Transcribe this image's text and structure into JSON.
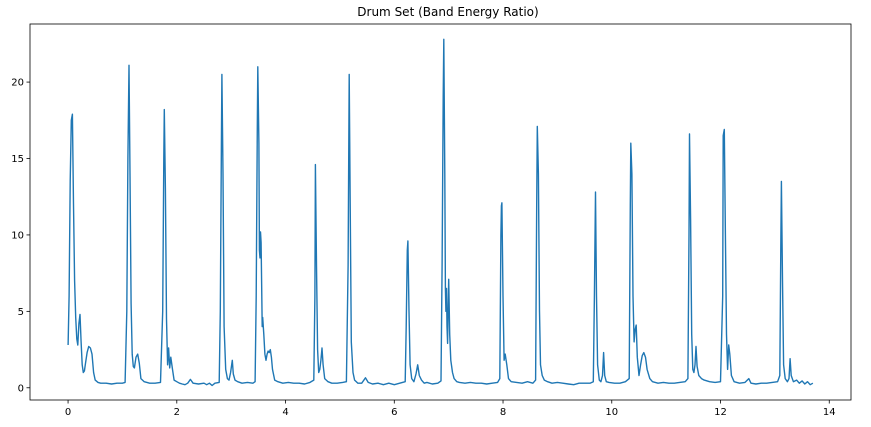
{
  "chart_data": {
    "type": "line",
    "title": "Drum Set (Band Energy Ratio)",
    "xlabel": "",
    "ylabel": "",
    "xlim": [
      -0.7,
      14.4
    ],
    "ylim": [
      -0.8,
      23.8
    ],
    "xticks": [
      0,
      2,
      4,
      6,
      8,
      10,
      12,
      14
    ],
    "yticks": [
      0,
      5,
      10,
      15,
      20
    ],
    "grid": false,
    "legend": "none",
    "series": [
      {
        "color": "#1f77b4",
        "points": [
          [
            0.0,
            2.8
          ],
          [
            0.02,
            6.0
          ],
          [
            0.04,
            13.5
          ],
          [
            0.06,
            17.5
          ],
          [
            0.08,
            17.9
          ],
          [
            0.1,
            12.0
          ],
          [
            0.12,
            7.0
          ],
          [
            0.14,
            4.6
          ],
          [
            0.16,
            3.2
          ],
          [
            0.18,
            2.8
          ],
          [
            0.2,
            4.2
          ],
          [
            0.22,
            4.8
          ],
          [
            0.24,
            3.0
          ],
          [
            0.26,
            1.5
          ],
          [
            0.28,
            1.0
          ],
          [
            0.3,
            1.1
          ],
          [
            0.32,
            1.6
          ],
          [
            0.35,
            2.3
          ],
          [
            0.38,
            2.7
          ],
          [
            0.41,
            2.6
          ],
          [
            0.44,
            2.2
          ],
          [
            0.47,
            1.0
          ],
          [
            0.5,
            0.5
          ],
          [
            0.55,
            0.35
          ],
          [
            0.6,
            0.3
          ],
          [
            0.7,
            0.3
          ],
          [
            0.8,
            0.25
          ],
          [
            0.9,
            0.3
          ],
          [
            1.0,
            0.3
          ],
          [
            1.05,
            0.35
          ],
          [
            1.08,
            5.0
          ],
          [
            1.1,
            15.0
          ],
          [
            1.12,
            21.1
          ],
          [
            1.14,
            14.0
          ],
          [
            1.16,
            5.5
          ],
          [
            1.18,
            2.2
          ],
          [
            1.2,
            1.4
          ],
          [
            1.22,
            1.3
          ],
          [
            1.25,
            2.0
          ],
          [
            1.28,
            2.2
          ],
          [
            1.31,
            1.6
          ],
          [
            1.34,
            0.6
          ],
          [
            1.4,
            0.4
          ],
          [
            1.5,
            0.3
          ],
          [
            1.6,
            0.3
          ],
          [
            1.7,
            0.35
          ],
          [
            1.74,
            5.0
          ],
          [
            1.76,
            15.0
          ],
          [
            1.77,
            18.2
          ],
          [
            1.79,
            13.0
          ],
          [
            1.81,
            4.5
          ],
          [
            1.83,
            1.5
          ],
          [
            1.85,
            2.6
          ],
          [
            1.87,
            1.3
          ],
          [
            1.89,
            2.0
          ],
          [
            1.92,
            1.2
          ],
          [
            1.95,
            0.5
          ],
          [
            2.0,
            0.4
          ],
          [
            2.05,
            0.3
          ],
          [
            2.1,
            0.25
          ],
          [
            2.15,
            0.2
          ],
          [
            2.2,
            0.3
          ],
          [
            2.25,
            0.55
          ],
          [
            2.3,
            0.3
          ],
          [
            2.4,
            0.25
          ],
          [
            2.5,
            0.3
          ],
          [
            2.55,
            0.2
          ],
          [
            2.6,
            0.3
          ],
          [
            2.65,
            0.15
          ],
          [
            2.7,
            0.3
          ],
          [
            2.78,
            0.35
          ],
          [
            2.8,
            5.0
          ],
          [
            2.82,
            16.0
          ],
          [
            2.83,
            20.5
          ],
          [
            2.85,
            14.0
          ],
          [
            2.87,
            4.0
          ],
          [
            2.9,
            1.2
          ],
          [
            2.93,
            0.6
          ],
          [
            2.96,
            0.5
          ],
          [
            2.99,
            1.0
          ],
          [
            3.02,
            1.8
          ],
          [
            3.04,
            0.9
          ],
          [
            3.07,
            0.5
          ],
          [
            3.12,
            0.4
          ],
          [
            3.2,
            0.3
          ],
          [
            3.3,
            0.35
          ],
          [
            3.4,
            0.3
          ],
          [
            3.44,
            0.4
          ],
          [
            3.46,
            6.0
          ],
          [
            3.48,
            17.0
          ],
          [
            3.49,
            21.0
          ],
          [
            3.51,
            16.0
          ],
          [
            3.52,
            9.0
          ],
          [
            3.53,
            8.5
          ],
          [
            3.54,
            10.2
          ],
          [
            3.55,
            9.5
          ],
          [
            3.57,
            4.0
          ],
          [
            3.58,
            4.6
          ],
          [
            3.6,
            3.5
          ],
          [
            3.62,
            2.2
          ],
          [
            3.64,
            1.8
          ],
          [
            3.66,
            2.2
          ],
          [
            3.68,
            2.4
          ],
          [
            3.7,
            2.3
          ],
          [
            3.72,
            2.5
          ],
          [
            3.74,
            2.0
          ],
          [
            3.76,
            1.2
          ],
          [
            3.8,
            0.5
          ],
          [
            3.86,
            0.4
          ],
          [
            3.95,
            0.3
          ],
          [
            4.05,
            0.35
          ],
          [
            4.15,
            0.3
          ],
          [
            4.25,
            0.3
          ],
          [
            4.35,
            0.25
          ],
          [
            4.45,
            0.35
          ],
          [
            4.52,
            0.5
          ],
          [
            4.54,
            6.0
          ],
          [
            4.55,
            14.6
          ],
          [
            4.57,
            8.0
          ],
          [
            4.59,
            2.5
          ],
          [
            4.61,
            1.0
          ],
          [
            4.63,
            1.2
          ],
          [
            4.65,
            1.8
          ],
          [
            4.67,
            2.6
          ],
          [
            4.69,
            1.5
          ],
          [
            4.72,
            0.6
          ],
          [
            4.78,
            0.4
          ],
          [
            4.85,
            0.3
          ],
          [
            4.95,
            0.3
          ],
          [
            5.05,
            0.35
          ],
          [
            5.12,
            0.4
          ],
          [
            5.15,
            8.0
          ],
          [
            5.17,
            20.5
          ],
          [
            5.19,
            12.0
          ],
          [
            5.21,
            3.0
          ],
          [
            5.24,
            1.0
          ],
          [
            5.27,
            0.5
          ],
          [
            5.33,
            0.3
          ],
          [
            5.4,
            0.3
          ],
          [
            5.47,
            0.65
          ],
          [
            5.52,
            0.35
          ],
          [
            5.6,
            0.25
          ],
          [
            5.7,
            0.3
          ],
          [
            5.8,
            0.2
          ],
          [
            5.9,
            0.3
          ],
          [
            6.0,
            0.2
          ],
          [
            6.1,
            0.3
          ],
          [
            6.2,
            0.4
          ],
          [
            6.22,
            4.0
          ],
          [
            6.24,
            9.0
          ],
          [
            6.25,
            9.6
          ],
          [
            6.27,
            5.0
          ],
          [
            6.29,
            1.5
          ],
          [
            6.32,
            0.6
          ],
          [
            6.36,
            0.4
          ],
          [
            6.4,
            0.9
          ],
          [
            6.43,
            1.5
          ],
          [
            6.46,
            0.8
          ],
          [
            6.5,
            0.5
          ],
          [
            6.55,
            0.3
          ],
          [
            6.6,
            0.35
          ],
          [
            6.7,
            0.25
          ],
          [
            6.8,
            0.3
          ],
          [
            6.86,
            0.45
          ],
          [
            6.88,
            8.0
          ],
          [
            6.9,
            19.0
          ],
          [
            6.91,
            22.8
          ],
          [
            6.93,
            14.0
          ],
          [
            6.94,
            6.5
          ],
          [
            6.95,
            5.0
          ],
          [
            6.96,
            6.5
          ],
          [
            6.97,
            4.0
          ],
          [
            6.98,
            2.9
          ],
          [
            6.99,
            5.0
          ],
          [
            7.0,
            7.1
          ],
          [
            7.02,
            3.5
          ],
          [
            7.04,
            1.8
          ],
          [
            7.07,
            1.0
          ],
          [
            7.1,
            0.6
          ],
          [
            7.15,
            0.4
          ],
          [
            7.2,
            0.35
          ],
          [
            7.3,
            0.3
          ],
          [
            7.4,
            0.35
          ],
          [
            7.5,
            0.3
          ],
          [
            7.6,
            0.3
          ],
          [
            7.7,
            0.25
          ],
          [
            7.8,
            0.3
          ],
          [
            7.9,
            0.35
          ],
          [
            7.94,
            0.6
          ],
          [
            7.96,
            10.0
          ],
          [
            7.97,
            11.9
          ],
          [
            7.98,
            12.1
          ],
          [
            8.0,
            6.0
          ],
          [
            8.02,
            1.8
          ],
          [
            8.04,
            2.2
          ],
          [
            8.07,
            1.5
          ],
          [
            8.1,
            0.6
          ],
          [
            8.15,
            0.4
          ],
          [
            8.25,
            0.35
          ],
          [
            8.35,
            0.3
          ],
          [
            8.45,
            0.4
          ],
          [
            8.55,
            0.3
          ],
          [
            8.6,
            0.5
          ],
          [
            8.62,
            12.0
          ],
          [
            8.63,
            17.1
          ],
          [
            8.65,
            14.0
          ],
          [
            8.67,
            5.0
          ],
          [
            8.69,
            1.5
          ],
          [
            8.72,
            0.8
          ],
          [
            8.76,
            0.5
          ],
          [
            8.82,
            0.4
          ],
          [
            8.9,
            0.3
          ],
          [
            9.0,
            0.35
          ],
          [
            9.1,
            0.3
          ],
          [
            9.2,
            0.25
          ],
          [
            9.3,
            0.2
          ],
          [
            9.4,
            0.3
          ],
          [
            9.5,
            0.3
          ],
          [
            9.6,
            0.3
          ],
          [
            9.66,
            0.4
          ],
          [
            9.68,
            6.0
          ],
          [
            9.7,
            12.8
          ],
          [
            9.72,
            6.0
          ],
          [
            9.74,
            1.5
          ],
          [
            9.77,
            0.5
          ],
          [
            9.8,
            0.4
          ],
          [
            9.83,
            0.8
          ],
          [
            9.85,
            2.3
          ],
          [
            9.87,
            0.8
          ],
          [
            9.9,
            0.4
          ],
          [
            9.95,
            0.35
          ],
          [
            10.05,
            0.3
          ],
          [
            10.15,
            0.3
          ],
          [
            10.25,
            0.4
          ],
          [
            10.32,
            0.6
          ],
          [
            10.34,
            12.0
          ],
          [
            10.35,
            16.0
          ],
          [
            10.37,
            14.0
          ],
          [
            10.39,
            6.0
          ],
          [
            10.41,
            3.0
          ],
          [
            10.43,
            3.8
          ],
          [
            10.45,
            4.1
          ],
          [
            10.47,
            2.0
          ],
          [
            10.5,
            0.8
          ],
          [
            10.53,
            1.5
          ],
          [
            10.56,
            2.1
          ],
          [
            10.59,
            2.3
          ],
          [
            10.62,
            2.0
          ],
          [
            10.65,
            1.2
          ],
          [
            10.7,
            0.6
          ],
          [
            10.75,
            0.4
          ],
          [
            10.85,
            0.3
          ],
          [
            10.95,
            0.35
          ],
          [
            11.05,
            0.3
          ],
          [
            11.15,
            0.3
          ],
          [
            11.25,
            0.35
          ],
          [
            11.35,
            0.4
          ],
          [
            11.4,
            0.6
          ],
          [
            11.42,
            10.0
          ],
          [
            11.43,
            16.6
          ],
          [
            11.45,
            11.0
          ],
          [
            11.47,
            3.5
          ],
          [
            11.49,
            1.2
          ],
          [
            11.51,
            1.0
          ],
          [
            11.53,
            1.5
          ],
          [
            11.55,
            2.7
          ],
          [
            11.57,
            1.4
          ],
          [
            11.6,
            0.8
          ],
          [
            11.65,
            0.6
          ],
          [
            11.7,
            0.5
          ],
          [
            11.8,
            0.4
          ],
          [
            11.9,
            0.35
          ],
          [
            12.0,
            0.4
          ],
          [
            12.04,
            6.0
          ],
          [
            12.05,
            16.5
          ],
          [
            12.07,
            16.9
          ],
          [
            12.09,
            10.0
          ],
          [
            12.11,
            3.5
          ],
          [
            12.13,
            1.2
          ],
          [
            12.15,
            2.8
          ],
          [
            12.17,
            2.2
          ],
          [
            12.2,
            0.8
          ],
          [
            12.25,
            0.4
          ],
          [
            12.35,
            0.3
          ],
          [
            12.45,
            0.35
          ],
          [
            12.52,
            0.6
          ],
          [
            12.56,
            0.3
          ],
          [
            12.65,
            0.25
          ],
          [
            12.75,
            0.3
          ],
          [
            12.85,
            0.3
          ],
          [
            12.95,
            0.35
          ],
          [
            13.05,
            0.4
          ],
          [
            13.09,
            0.8
          ],
          [
            13.11,
            10.0
          ],
          [
            13.12,
            13.5
          ],
          [
            13.14,
            7.0
          ],
          [
            13.16,
            1.5
          ],
          [
            13.19,
            0.6
          ],
          [
            13.23,
            0.4
          ],
          [
            13.26,
            0.6
          ],
          [
            13.28,
            1.9
          ],
          [
            13.3,
            0.8
          ],
          [
            13.34,
            0.4
          ],
          [
            13.4,
            0.5
          ],
          [
            13.45,
            0.3
          ],
          [
            13.5,
            0.45
          ],
          [
            13.55,
            0.25
          ],
          [
            13.6,
            0.4
          ],
          [
            13.65,
            0.2
          ],
          [
            13.7,
            0.3
          ]
        ]
      }
    ]
  }
}
